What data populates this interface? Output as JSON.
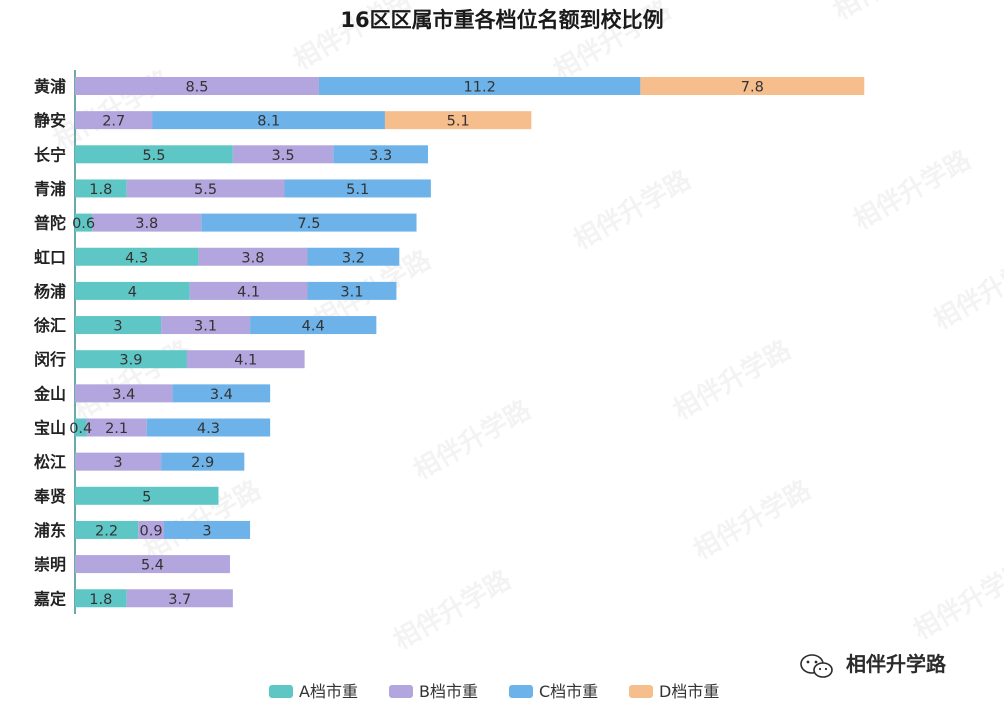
{
  "chart_data": {
    "type": "bar",
    "orientation": "horizontal",
    "stacked": true,
    "title": "16区区属市重各档位名额到校比例",
    "categories": [
      "黄浦",
      "静安",
      "长宁",
      "青浦",
      "普陀",
      "虹口",
      "杨浦",
      "徐汇",
      "闵行",
      "金山",
      "宝山",
      "松江",
      "奉贤",
      "浦东",
      "崇明",
      "嘉定"
    ],
    "series": [
      {
        "name": "A档市重",
        "color": "#5fc6c6",
        "values": [
          0,
          0,
          5.5,
          1.8,
          0.6,
          4.3,
          4,
          3,
          3.9,
          0,
          0.4,
          0,
          5,
          2.2,
          0,
          1.8
        ]
      },
      {
        "name": "B档市重",
        "color": "#b3a5dd",
        "values": [
          8.5,
          2.7,
          3.5,
          5.5,
          3.8,
          3.8,
          4.1,
          3.1,
          4.1,
          3.4,
          2.1,
          3,
          0,
          0.9,
          5.4,
          3.7
        ]
      },
      {
        "name": "C档市重",
        "color": "#6db3ea",
        "values": [
          11.2,
          8.1,
          3.3,
          5.1,
          7.5,
          3.2,
          3.1,
          4.4,
          0,
          3.4,
          4.3,
          2.9,
          0,
          3,
          0,
          0
        ]
      },
      {
        "name": "D档市重",
        "color": "#f7be8d",
        "values": [
          7.8,
          5.1,
          0,
          0,
          0,
          0,
          0,
          0,
          0,
          0,
          0,
          0,
          0,
          0,
          0,
          0
        ]
      }
    ],
    "xlim": [
      0,
      30
    ],
    "grid": false,
    "legend_position": "bottom-center"
  },
  "watermark": "相伴升学路",
  "brand": {
    "name": "相伴升学路",
    "icon": "wechat-icon"
  },
  "colors": {
    "axis": "#3a8e8e"
  }
}
